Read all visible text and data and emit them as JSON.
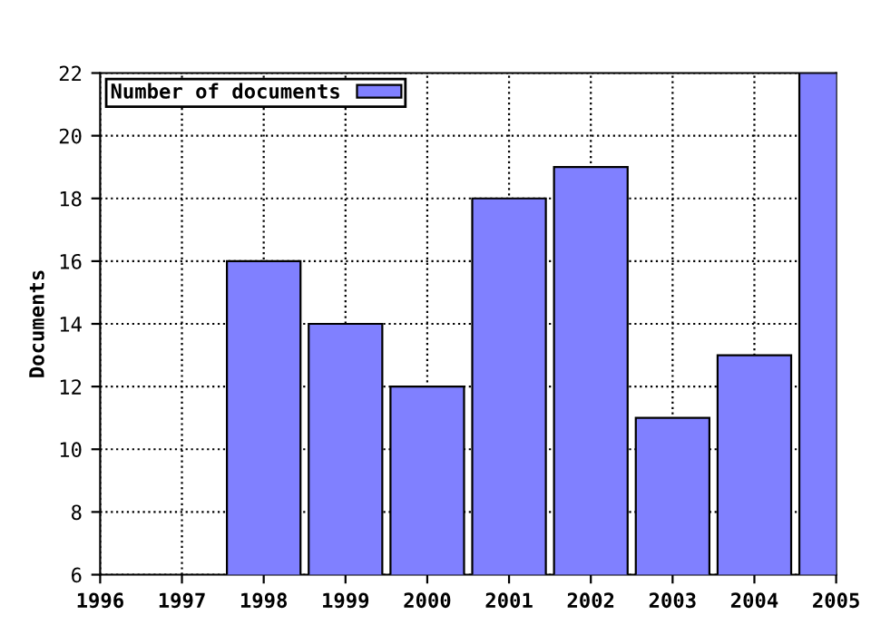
{
  "chart_data": {
    "type": "bar",
    "ylabel": "Documents",
    "x": [
      1998,
      1999,
      2000,
      2001,
      2002,
      2003,
      2004,
      2005
    ],
    "series": [
      {
        "name": "Number of documents",
        "color": "#8080ff",
        "values": [
          16,
          14,
          12,
          18,
          19,
          11,
          13,
          22
        ]
      }
    ],
    "xlim": [
      1996,
      2005
    ],
    "xticks": [
      1996,
      1997,
      1998,
      1999,
      2000,
      2001,
      2002,
      2003,
      2004,
      2005
    ],
    "ylim": [
      6,
      22
    ],
    "yticks": [
      6,
      8,
      10,
      12,
      14,
      16,
      18,
      20,
      22
    ],
    "grid": true,
    "line_style": "dotted",
    "legend": "top left"
  }
}
